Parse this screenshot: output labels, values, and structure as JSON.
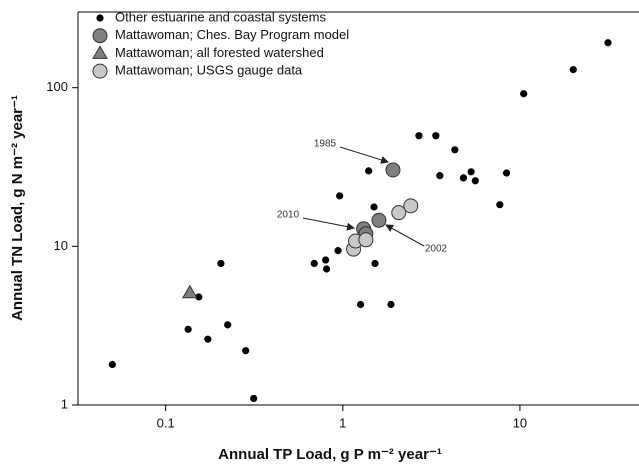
{
  "chart_data": {
    "type": "scatter",
    "x_label": "Annual TP Load, g P m⁻² year⁻¹",
    "y_label": "Annual TN Load, g N m⁻² year⁻¹",
    "xscale": "log",
    "yscale": "log",
    "xlim": [
      0.032,
      47
    ],
    "ylim": [
      1,
      300
    ],
    "xticks": [
      0.1,
      1,
      10
    ],
    "yticks": [
      1,
      10,
      100
    ],
    "legend": "upper left",
    "series": [
      {
        "name": "Other estuarine and coastal systems",
        "color": "#000000",
        "marker": "dot",
        "x": [
          0.05,
          0.154,
          0.134,
          0.173,
          0.205,
          0.224,
          0.283,
          0.314,
          0.69,
          0.8,
          0.81,
          0.94,
          0.96,
          1.26,
          1.4,
          1.5,
          1.52,
          1.87,
          2.69,
          3.35,
          3.53,
          4.29,
          4.8,
          5.3,
          5.6,
          7.7,
          8.4,
          10.5,
          20,
          31.4
        ],
        "values": [
          1.8,
          4.8,
          3.0,
          2.6,
          7.8,
          3.2,
          2.2,
          1.1,
          7.8,
          8.2,
          7.2,
          9.4,
          20.8,
          4.3,
          29.9,
          17.7,
          7.8,
          4.3,
          49.8,
          49.8,
          27.9,
          40.6,
          27,
          29.5,
          25.9,
          18.3,
          29,
          91.6,
          130,
          192
        ]
      },
      {
        "name": "Mattawoman; Ches. Bay Program model",
        "color": "#7f7f7f",
        "marker": "circle",
        "x": [
          1.92,
          1.31,
          1.6,
          1.35
        ],
        "values": [
          30.3,
          12.9,
          14.6,
          12
        ]
      },
      {
        "name": "Mattawoman; all forested watershed",
        "color": "#7f7f7f",
        "marker": "triangle",
        "x": [
          0.137
        ],
        "values": [
          5.1
        ]
      },
      {
        "name": "Mattawoman; USGS gauge data",
        "color": "#c8c8c8",
        "marker": "circle",
        "x": [
          1.15,
          1.18,
          1.35,
          2.07,
          2.42
        ],
        "values": [
          9.6,
          10.8,
          11.0,
          16.3,
          18.0
        ]
      }
    ],
    "annotations": [
      "1985",
      "2010",
      "2002"
    ]
  }
}
